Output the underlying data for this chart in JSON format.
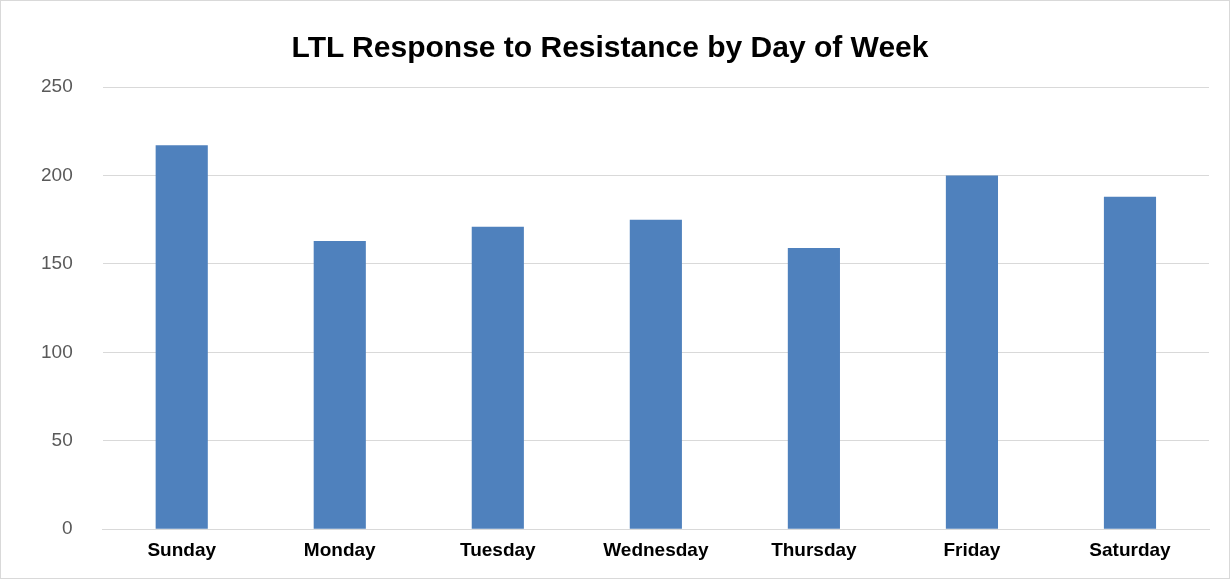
{
  "chart_data": {
    "type": "bar",
    "title": "LTL Response to Resistance by Day of Week",
    "categories": [
      "Sunday",
      "Monday",
      "Tuesday",
      "Wednesday",
      "Thursday",
      "Friday",
      "Saturday"
    ],
    "values": [
      217,
      163,
      171,
      175,
      159,
      200,
      188
    ],
    "color": "#4f81bd",
    "ylim": [
      0,
      250
    ],
    "yticks": [
      0,
      50,
      100,
      150,
      200,
      250
    ],
    "grid": "y",
    "legend": false
  }
}
